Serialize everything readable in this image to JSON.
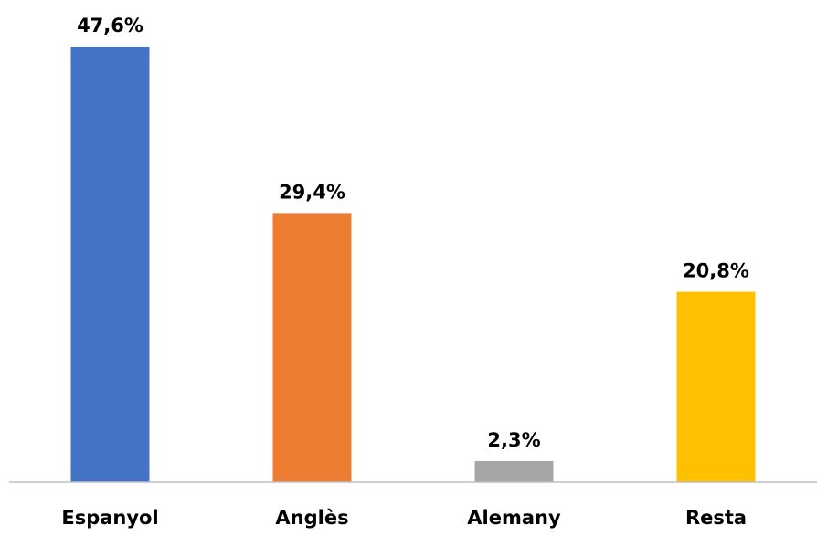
{
  "chart_data": {
    "type": "bar",
    "categories": [
      "Espanyol",
      "Anglès",
      "Alemany",
      "Resta"
    ],
    "values": [
      47.6,
      29.4,
      2.3,
      20.8
    ],
    "value_labels": [
      "47,6%",
      "29,4%",
      "2,3%",
      "20,8%"
    ],
    "colors": [
      "#4472C4",
      "#ED7D31",
      "#A5A5A5",
      "#FFC000"
    ],
    "unit": "%",
    "ylim": [
      0,
      47.6
    ],
    "grid": false,
    "legend": "none",
    "title": "",
    "xlabel": "",
    "ylabel": ""
  }
}
